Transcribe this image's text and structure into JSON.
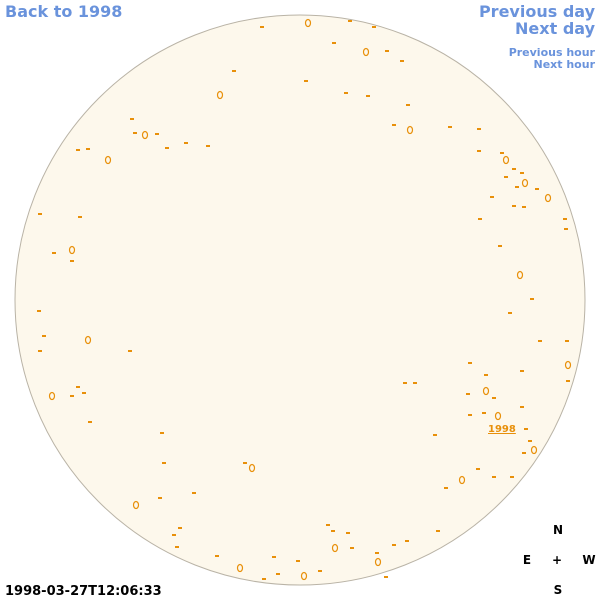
{
  "navigation": {
    "back": "Back to 1998",
    "previous_day": "Previous day",
    "next_day": "Next day",
    "previous_hour": "Previous hour",
    "next_hour": "Next hour"
  },
  "map": {
    "year_link": "1998",
    "timestamp": "1998-03-27T12:06:33"
  },
  "compass": {
    "north": "N",
    "east": "E",
    "center": "+",
    "west": "W",
    "south": "S"
  }
}
